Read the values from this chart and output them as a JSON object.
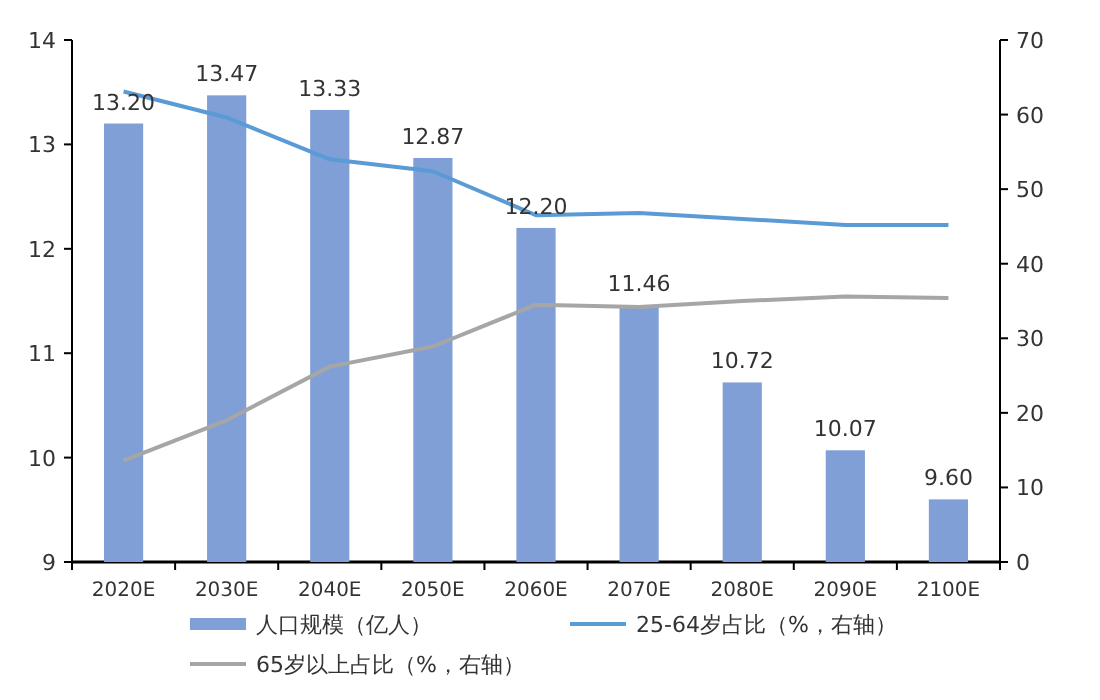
{
  "chart_data": {
    "type": "bar",
    "categories": [
      "2020E",
      "2030E",
      "2040E",
      "2050E",
      "2060E",
      "2070E",
      "2080E",
      "2090E",
      "2100E"
    ],
    "series": [
      {
        "name": "人口规模（亿人）",
        "color": "#7f9fd6",
        "values": [
          13.2,
          13.47,
          13.33,
          12.87,
          12.2,
          11.46,
          10.72,
          10.07,
          9.6
        ],
        "value_labels": [
          "13.20",
          "13.47",
          "13.33",
          "12.87",
          "12.20",
          "11.46",
          "10.72",
          "10.07",
          "9.60"
        ]
      },
      {
        "name": "25-64岁占比（%，右轴）",
        "type": "line",
        "axis": "y2",
        "color": "#5b9bd5",
        "values": [
          63.1,
          59.6,
          54.0,
          52.4,
          46.5,
          46.8,
          46.0,
          45.2,
          45.2
        ]
      },
      {
        "name": "65岁以上占比（%，右轴）",
        "type": "line",
        "axis": "y2",
        "color": "#a6a6a6",
        "values": [
          13.6,
          19.0,
          26.2,
          28.9,
          34.5,
          34.2,
          35.0,
          35.6,
          35.4
        ]
      }
    ],
    "ylim": [
      9,
      14
    ],
    "yticks": [
      9,
      10,
      11,
      12,
      13,
      14
    ],
    "y2lim": [
      0,
      70
    ],
    "y2ticks": [
      0,
      10,
      20,
      30,
      40,
      50,
      60,
      70
    ],
    "legend": "bottom",
    "grid": false,
    "marker": "none",
    "line_style": "solid"
  }
}
